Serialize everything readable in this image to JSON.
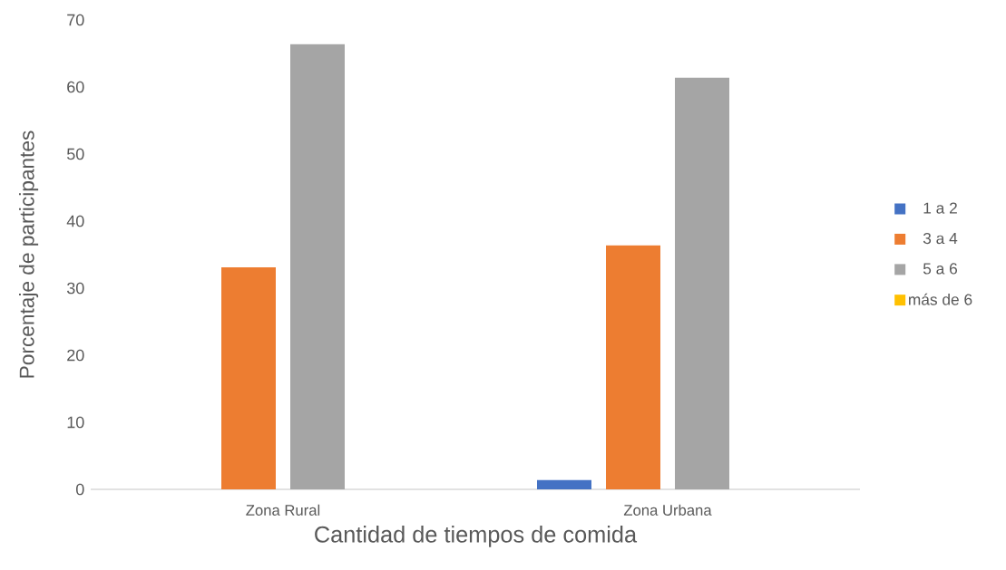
{
  "chart_data": {
    "type": "bar",
    "xlabel": "Cantidad de tiempos de comida",
    "ylabel": "Porcentaje de participantes",
    "categories": [
      "Zona Rural",
      "Zona Urbana"
    ],
    "series": [
      {
        "name": "1 a 2",
        "color": "#4472c4",
        "values": [
          0,
          1.4
        ]
      },
      {
        "name": "3 a 4",
        "color": "#ed7d31",
        "values": [
          33.1,
          36.4
        ]
      },
      {
        "name": "5 a 6",
        "color": "#a5a5a5",
        "values": [
          66.4,
          61.4
        ]
      },
      {
        "name": "más de 6",
        "color": "#ffc000",
        "values": [
          0,
          0
        ]
      }
    ],
    "ylim": [
      0,
      70
    ],
    "yticks": [
      0,
      10,
      20,
      30,
      40,
      50,
      60,
      70
    ],
    "legend": "right"
  }
}
